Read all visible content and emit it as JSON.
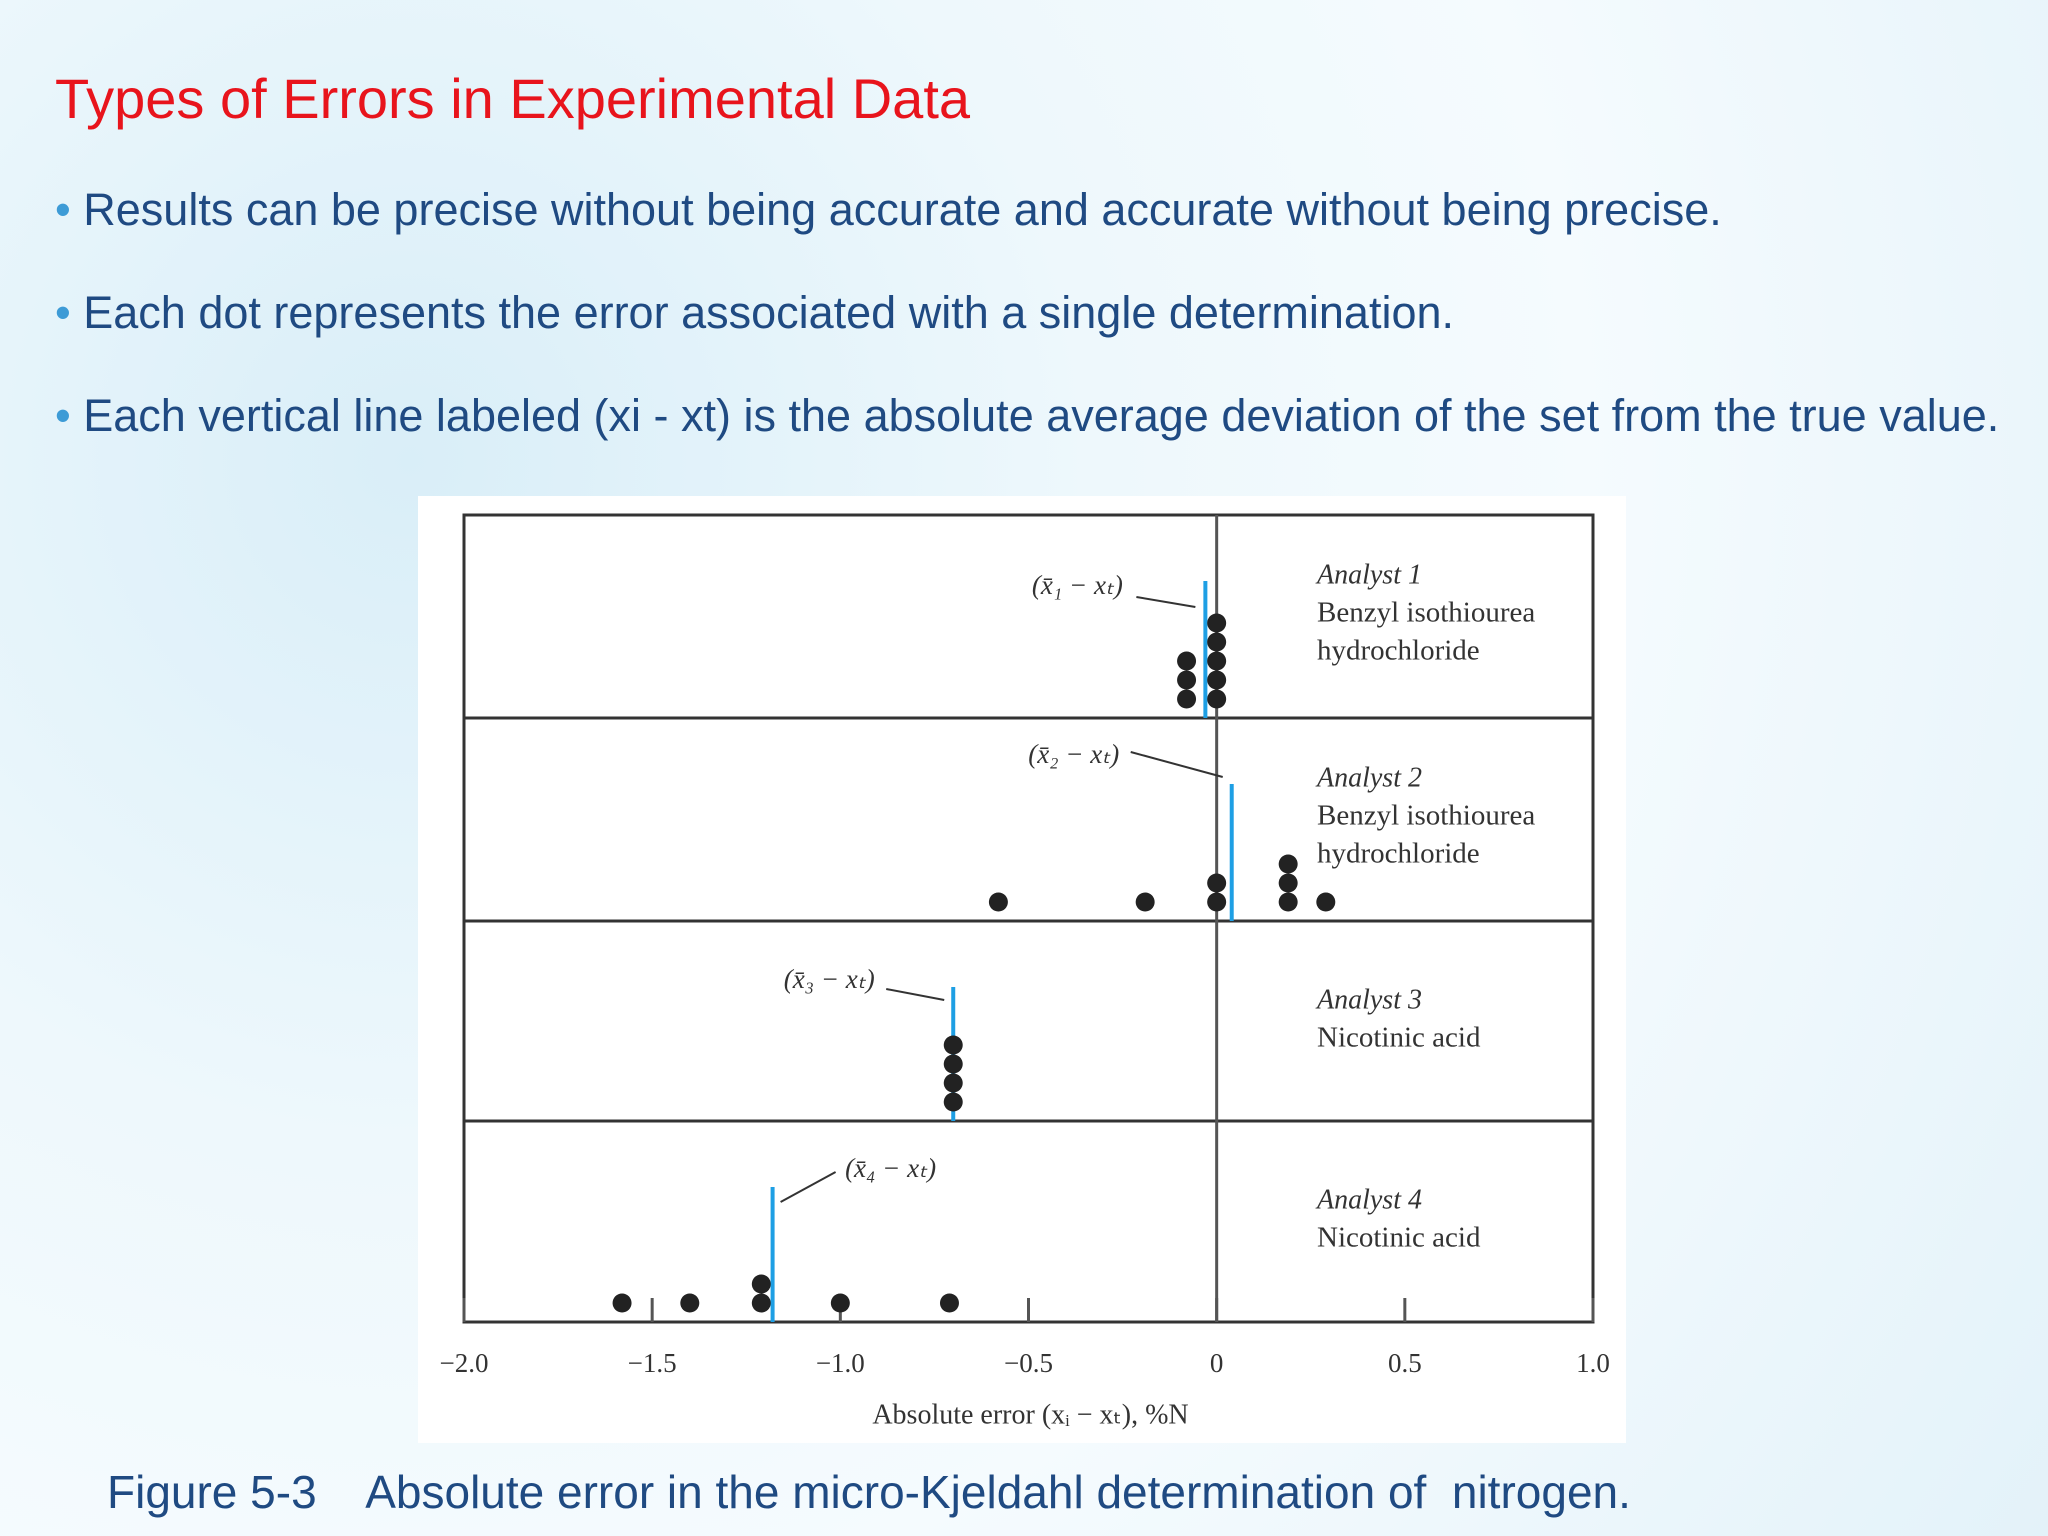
{
  "title": "Types of Errors in Experimental Data",
  "bullets": [
    "Results can be precise without being accurate and accurate without being precise.",
    "Each dot represents the error associated with a single determination.",
    "Each vertical line labeled (xi - xt) is the absolute average deviation of the set from the true value."
  ],
  "caption": "Figure 5-3    Absolute error in the micro-Kjeldahl determination of  nitrogen.",
  "chart_data": {
    "type": "dot",
    "xlabel": "Absolute error (xᵢ − xₜ), %N",
    "xlim": [
      -2,
      1
    ],
    "xticks": [
      {
        "value": -2,
        "label": "−2.0"
      },
      {
        "value": -1.5,
        "label": "−1.5"
      },
      {
        "value": -1,
        "label": "−1.0"
      },
      {
        "value": -0.5,
        "label": "−0.5"
      },
      0,
      0.5,
      {
        "value": 1,
        "label": "1.0"
      }
    ],
    "dot_color": "#222222",
    "mean_color": "#1e9fe4",
    "series": [
      {
        "name": "Analyst 1",
        "compound": [
          "Benzyl isothiourea",
          "hydrochloride"
        ],
        "values": [
          -0.08,
          -0.08,
          -0.08,
          0,
          0,
          0,
          0,
          0
        ],
        "mean": -0.03,
        "mean_label": "(x̄₁ − xₜ)"
      },
      {
        "name": "Analyst 2",
        "compound": [
          "Benzyl isothiourea",
          "hydrochloride"
        ],
        "values": [
          -0.58,
          -0.19,
          0,
          0,
          0.19,
          0.19,
          0.19,
          0.29
        ],
        "mean": 0.04,
        "mean_label": "(x̄₂ − xₜ)"
      },
      {
        "name": "Analyst 3",
        "compound": [
          "Nicotinic acid"
        ],
        "values": [
          -0.7,
          -0.7,
          -0.7,
          -0.7
        ],
        "mean": -0.7,
        "mean_label": "(x̄₃ − xₜ)"
      },
      {
        "name": "Analyst 4",
        "compound": [
          "Nicotinic acid"
        ],
        "values": [
          -1.58,
          -1.4,
          -1.21,
          -1.21,
          -1.0,
          -0.71
        ],
        "mean": -1.18,
        "mean_label": "(x̄₄ − xₜ)"
      }
    ]
  }
}
